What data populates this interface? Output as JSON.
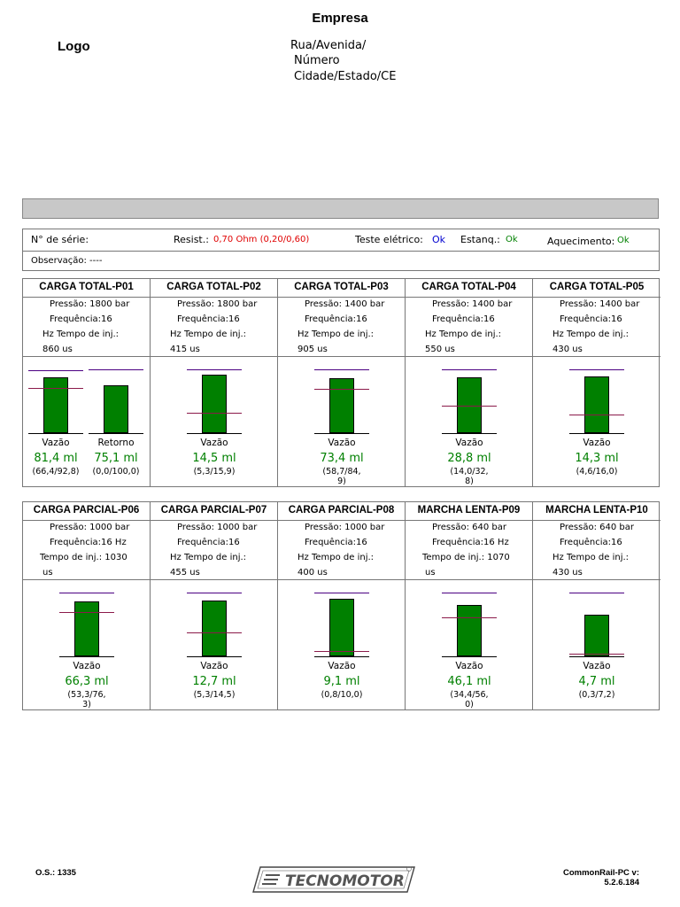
{
  "header": {
    "company": "Empresa",
    "logo": "Logo",
    "address": [
      "Rua/Avenida/",
      "Número",
      "Cidade/Estado/CE"
    ]
  },
  "info": {
    "serial_label": "N° de série:",
    "resist_label": "Resist.:",
    "resist_value": "0,70 Ohm (0,20/0,60)",
    "electric_label": "Teste elétrico:",
    "electric_value": "Ok",
    "seal_label": "Estanq.:",
    "seal_value": "Ok",
    "heating_label": "Aquecimento:",
    "heating_value": "Ok",
    "obs_label": "Observação: ----"
  },
  "tests": [
    {
      "title": "CARGA TOTAL-P01",
      "l1": "Pressão: 1800 bar",
      "l2": "Frequência:16",
      "l3": "Hz Tempo de inj.:",
      "l4": "860 us",
      "bars": [
        {
          "label": "Vazão",
          "value": "81,4 ml",
          "range": [
            "(66,4/92,8)"
          ],
          "fill": 0.88,
          "lo": 0.71,
          "hi": 0.99
        },
        {
          "label": "Retorno",
          "value": "75,1 ml",
          "range": [
            "(0,0/100,0)"
          ],
          "fill": 0.75,
          "lo": 0.0,
          "hi": 1.0
        }
      ]
    },
    {
      "title": "CARGA TOTAL-P02",
      "l1": "Pressão: 1800 bar",
      "l2": "Frequência:16",
      "l3": "Hz Tempo de inj.:",
      "l4": "415 us",
      "bars": [
        {
          "label": "Vazão",
          "value": "14,5 ml",
          "range": [
            "(5,3/15,9)"
          ],
          "fill": 0.92,
          "lo": 0.32,
          "hi": 1.0
        }
      ]
    },
    {
      "title": "CARGA TOTAL-P03",
      "l1": "Pressão: 1400 bar",
      "l2": "Frequência:16",
      "l3": "Hz Tempo de inj.:",
      "l4": "905 us",
      "bars": [
        {
          "label": "Vazão",
          "value": "73,4 ml",
          "range": [
            "(58,7/84,",
            "9)"
          ],
          "fill": 0.86,
          "lo": 0.69,
          "hi": 1.0
        }
      ]
    },
    {
      "title": "CARGA TOTAL-P04",
      "l1": "Pressão: 1400 bar",
      "l2": "Frequência:16",
      "l3": "Hz Tempo de inj.:",
      "l4": "550 us",
      "bars": [
        {
          "label": "Vazão",
          "value": "28,8 ml",
          "range": [
            "(14,0/32,",
            "8)"
          ],
          "fill": 0.88,
          "lo": 0.43,
          "hi": 1.0
        }
      ]
    },
    {
      "title": "CARGA TOTAL-P05",
      "l1": "Pressão: 1400 bar",
      "l2": "Frequência:16",
      "l3": "Hz Tempo de inj.:",
      "l4": "430 us",
      "bars": [
        {
          "label": "Vazão",
          "value": "14,3 ml",
          "range": [
            "(4,6/16,0)"
          ],
          "fill": 0.89,
          "lo": 0.29,
          "hi": 1.0
        }
      ]
    },
    {
      "title": "CARGA PARCIAL-P06",
      "l1": "Pressão: 1000 bar",
      "l2": "Frequência:16 Hz",
      "l3": "Tempo de inj.: 1030",
      "l4": "us",
      "bars": [
        {
          "label": "Vazão",
          "value": "66,3 ml",
          "range": [
            "(53,3/76,",
            "3)"
          ],
          "fill": 0.86,
          "lo": 0.69,
          "hi": 1.0
        }
      ]
    },
    {
      "title": "CARGA PARCIAL-P07",
      "l1": "Pressão: 1000 bar",
      "l2": "Frequência:16",
      "l3": "Hz Tempo de inj.:",
      "l4": "455 us",
      "bars": [
        {
          "label": "Vazão",
          "value": "12,7 ml",
          "range": [
            "(5,3/14,5)"
          ],
          "fill": 0.87,
          "lo": 0.37,
          "hi": 1.0
        }
      ]
    },
    {
      "title": "CARGA PARCIAL-P08",
      "l1": "Pressão: 1000 bar",
      "l2": "Frequência:16",
      "l3": "Hz Tempo de inj.:",
      "l4": "400 us",
      "bars": [
        {
          "label": "Vazão",
          "value": "9,1 ml",
          "range": [
            "(0,8/10,0)"
          ],
          "fill": 0.9,
          "lo": 0.08,
          "hi": 1.0
        }
      ]
    },
    {
      "title": "MARCHA LENTA-P09",
      "l1": "Pressão: 640 bar",
      "l2": "Frequência:16 Hz",
      "l3": "Tempo de inj.: 1070",
      "l4": "us",
      "bars": [
        {
          "label": "Vazão",
          "value": "46,1 ml",
          "range": [
            "(34,4/56,",
            "0)"
          ],
          "fill": 0.81,
          "lo": 0.61,
          "hi": 1.0
        }
      ]
    },
    {
      "title": "MARCHA LENTA-P10",
      "l1": "Pressão: 640 bar",
      "l2": "Frequência:16",
      "l3": "Hz Tempo de inj.:",
      "l4": "430 us",
      "bars": [
        {
          "label": "Vazão",
          "value": "4,7 ml",
          "range": [
            "(0,3/7,2)"
          ],
          "fill": 0.65,
          "lo": 0.04,
          "hi": 1.0
        }
      ]
    }
  ],
  "footer": {
    "os": "O.S.: 1335",
    "brand": "TECNOMOTOR",
    "version_label": "CommonRail-PC v:",
    "version": "5.2.6.184"
  }
}
